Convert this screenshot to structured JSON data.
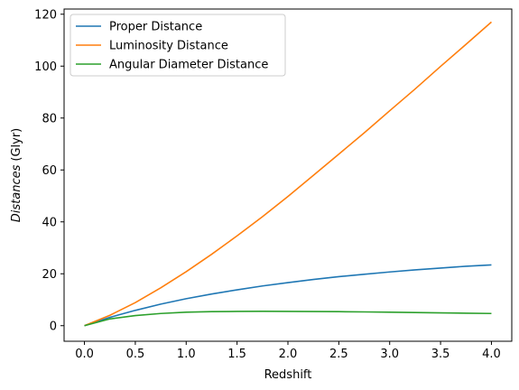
{
  "chart_data": {
    "type": "line",
    "title": "",
    "xlabel": "Redshift",
    "ylabel_italic": "Distances",
    "ylabel_unit": "(Glyr)",
    "xlim": [
      -0.2,
      4.2
    ],
    "ylim": [
      -6,
      122
    ],
    "x_ticks": [
      0.0,
      0.5,
      1.0,
      1.5,
      2.0,
      2.5,
      3.0,
      3.5,
      4.0
    ],
    "x_tick_labels": [
      "0.0",
      "0.5",
      "1.0",
      "1.5",
      "2.0",
      "2.5",
      "3.0",
      "3.5",
      "4.0"
    ],
    "y_ticks": [
      0,
      20,
      40,
      60,
      80,
      100,
      120
    ],
    "y_tick_labels": [
      "0",
      "20",
      "40",
      "60",
      "80",
      "100",
      "120"
    ],
    "grid": false,
    "legend_position": "top-left",
    "x": [
      0.0,
      0.25,
      0.5,
      0.75,
      1.0,
      1.25,
      1.5,
      1.75,
      2.0,
      2.25,
      2.5,
      2.75,
      3.0,
      3.25,
      3.5,
      3.75,
      4.0
    ],
    "series": [
      {
        "name": "Proper Distance",
        "color": "#1f77b4",
        "values": [
          0.0,
          3.2,
          5.9,
          8.3,
          10.4,
          12.2,
          13.8,
          15.3,
          16.6,
          17.8,
          18.9,
          19.8,
          20.7,
          21.5,
          22.2,
          22.9,
          23.4
        ]
      },
      {
        "name": "Luminosity Distance",
        "color": "#ff7f0e",
        "values": [
          0.0,
          4.0,
          8.9,
          14.6,
          20.8,
          27.5,
          34.6,
          42.0,
          49.8,
          57.9,
          66.1,
          74.3,
          82.8,
          91.2,
          99.9,
          108.4,
          117.0
        ]
      },
      {
        "name": "Angular Diameter Distance",
        "color": "#2ca02c",
        "values": [
          0.0,
          2.6,
          3.9,
          4.7,
          5.2,
          5.4,
          5.5,
          5.55,
          5.5,
          5.45,
          5.4,
          5.3,
          5.2,
          5.05,
          4.95,
          4.8,
          4.7
        ]
      }
    ]
  }
}
